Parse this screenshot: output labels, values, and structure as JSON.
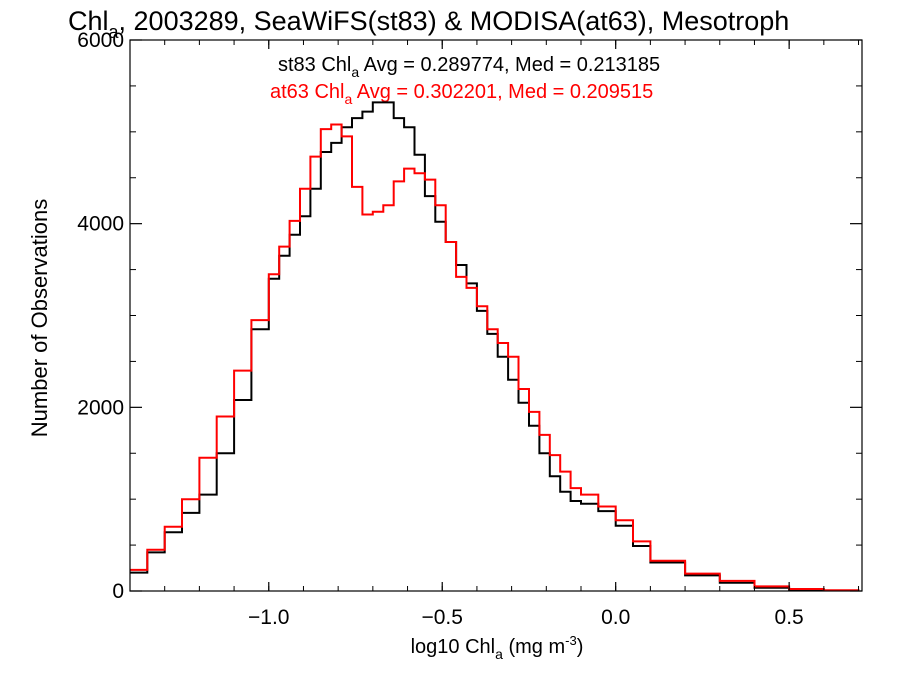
{
  "chart_data": {
    "type": "line",
    "title": {
      "prefix": "Chl",
      "sub": "a",
      "rest": ", 2003289, SeaWiFS(st83) & MODISA(at63), Mesotroph"
    },
    "xlabel": {
      "prefix": "log10 Chl",
      "sub": "a",
      "mid": " (mg m",
      "sup": "-3",
      "suffix": ")"
    },
    "ylabel": "Number of Observations",
    "xlim": [
      -1.4,
      0.71
    ],
    "ylim": [
      0,
      6000
    ],
    "x_ticks": [
      {
        "value": -1.0,
        "label": "−1.0"
      },
      {
        "value": -0.5,
        "label": "−0.5"
      },
      {
        "value": 0.0,
        "label": "0.0"
      },
      {
        "value": 0.5,
        "label": "0.5"
      }
    ],
    "y_ticks": [
      {
        "value": 0,
        "label": "0"
      },
      {
        "value": 2000,
        "label": "2000"
      },
      {
        "value": 4000,
        "label": "4000"
      },
      {
        "value": 6000,
        "label": "6000"
      }
    ],
    "annotations": [
      {
        "prefix": "st83 Chl",
        "sub": "a",
        "rest": " Avg = 0.289774, Med = 0.213185",
        "color": "#000000"
      },
      {
        "prefix": "at63 Chl",
        "sub": "a",
        "rest": " Avg = 0.302201, Med = 0.209515",
        "color": "#ff0000"
      }
    ],
    "series": [
      {
        "color": "#000000",
        "x": [
          -1.4,
          -1.35,
          -1.3,
          -1.25,
          -1.2,
          -1.15,
          -1.1,
          -1.05,
          -1.0,
          -0.97,
          -0.94,
          -0.91,
          -0.88,
          -0.85,
          -0.82,
          -0.79,
          -0.76,
          -0.73,
          -0.7,
          -0.67,
          -0.64,
          -0.61,
          -0.58,
          -0.55,
          -0.52,
          -0.49,
          -0.46,
          -0.43,
          -0.4,
          -0.37,
          -0.34,
          -0.31,
          -0.28,
          -0.25,
          -0.22,
          -0.19,
          -0.16,
          -0.13,
          -0.1,
          -0.05,
          0.0,
          0.05,
          0.1,
          0.2,
          0.3,
          0.4,
          0.5,
          0.6,
          0.7
        ],
        "y": [
          200,
          420,
          640,
          850,
          1050,
          1500,
          2080,
          2850,
          3400,
          3650,
          3880,
          4080,
          4380,
          4780,
          4880,
          5050,
          5150,
          5220,
          5320,
          5320,
          5150,
          5050,
          4750,
          4300,
          4020,
          3800,
          3550,
          3350,
          3050,
          2800,
          2550,
          2300,
          2050,
          1800,
          1500,
          1250,
          1080,
          980,
          950,
          870,
          710,
          490,
          310,
          170,
          90,
          35,
          15,
          5,
          0
        ]
      },
      {
        "color": "#ff0000",
        "x": [
          -1.4,
          -1.35,
          -1.3,
          -1.25,
          -1.2,
          -1.15,
          -1.1,
          -1.05,
          -1.0,
          -0.97,
          -0.94,
          -0.91,
          -0.88,
          -0.85,
          -0.82,
          -0.79,
          -0.76,
          -0.73,
          -0.7,
          -0.67,
          -0.64,
          -0.61,
          -0.58,
          -0.55,
          -0.52,
          -0.49,
          -0.46,
          -0.43,
          -0.4,
          -0.37,
          -0.34,
          -0.31,
          -0.28,
          -0.25,
          -0.22,
          -0.19,
          -0.16,
          -0.13,
          -0.1,
          -0.05,
          0.0,
          0.05,
          0.1,
          0.2,
          0.3,
          0.4,
          0.5,
          0.6,
          0.7
        ],
        "y": [
          230,
          450,
          700,
          1000,
          1450,
          1900,
          2400,
          2950,
          3450,
          3750,
          4030,
          4380,
          4730,
          5030,
          5080,
          4950,
          4400,
          4100,
          4130,
          4200,
          4460,
          4600,
          4550,
          4480,
          4200,
          3800,
          3420,
          3300,
          3100,
          2850,
          2700,
          2550,
          2200,
          1950,
          1700,
          1480,
          1300,
          1120,
          1050,
          920,
          770,
          540,
          330,
          190,
          110,
          50,
          22,
          8,
          0
        ]
      }
    ]
  }
}
